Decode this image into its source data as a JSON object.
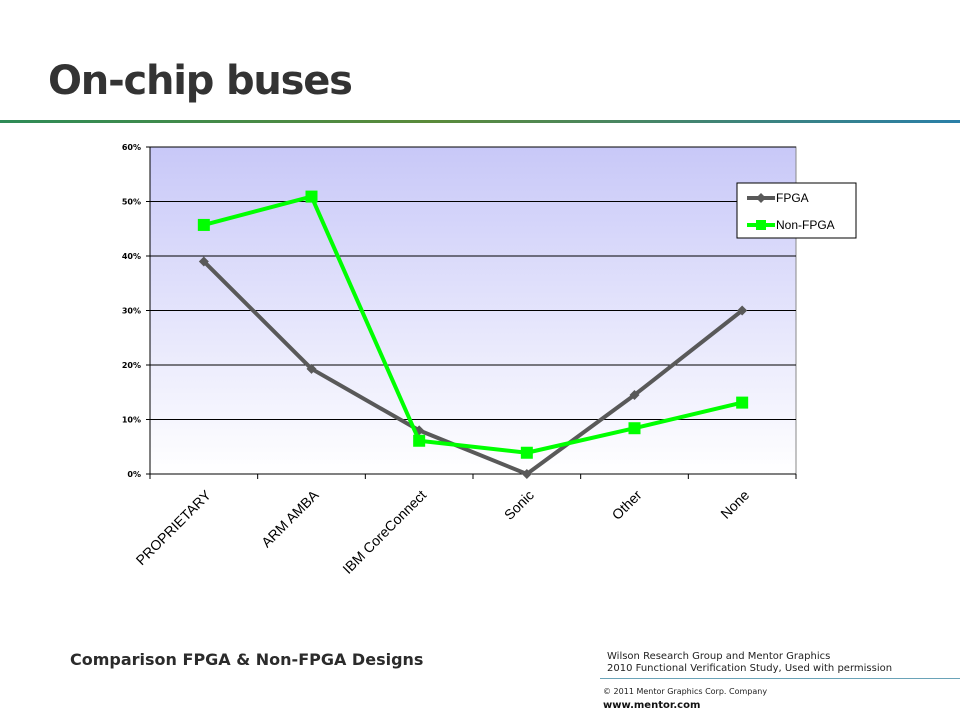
{
  "slide": {
    "title": "On-chip buses",
    "caption": "Comparison FPGA & Non-FPGA Designs",
    "source_line1": "Wilson Research Group and Mentor Graphics",
    "source_line2": "2010 Functional Verification Study,  Used with permission",
    "copyright": "© 2011 Mentor Graphics Corp. Company",
    "website": "www.mentor.com"
  },
  "colors": {
    "fpga": "#595959",
    "non_fpga": "#00ff00",
    "plot_top": "#c8c8f8",
    "plot_bottom": "#ffffff",
    "gridline": "#000000",
    "title_rule": "#4a8a3a"
  },
  "chart_data": {
    "type": "line",
    "categories": [
      "PROPRIETARY",
      "ARM AMBA",
      "IBM CoreConnect",
      "Sonic",
      "Other",
      "None"
    ],
    "series": [
      {
        "name": "FPGA",
        "values": [
          39,
          19.3,
          8,
          0,
          14.5,
          30
        ],
        "marker": "diamond",
        "color": "#595959"
      },
      {
        "name": "Non-FPGA",
        "values": [
          45.7,
          50.9,
          6.1,
          3.9,
          8.4,
          13.1
        ],
        "marker": "square",
        "color": "#00ff00"
      }
    ],
    "yticks": [
      "0%",
      "10%",
      "20%",
      "30%",
      "40%",
      "50%",
      "60%"
    ],
    "ylim": [
      0,
      60
    ],
    "grid": true,
    "legend": "top-right"
  }
}
